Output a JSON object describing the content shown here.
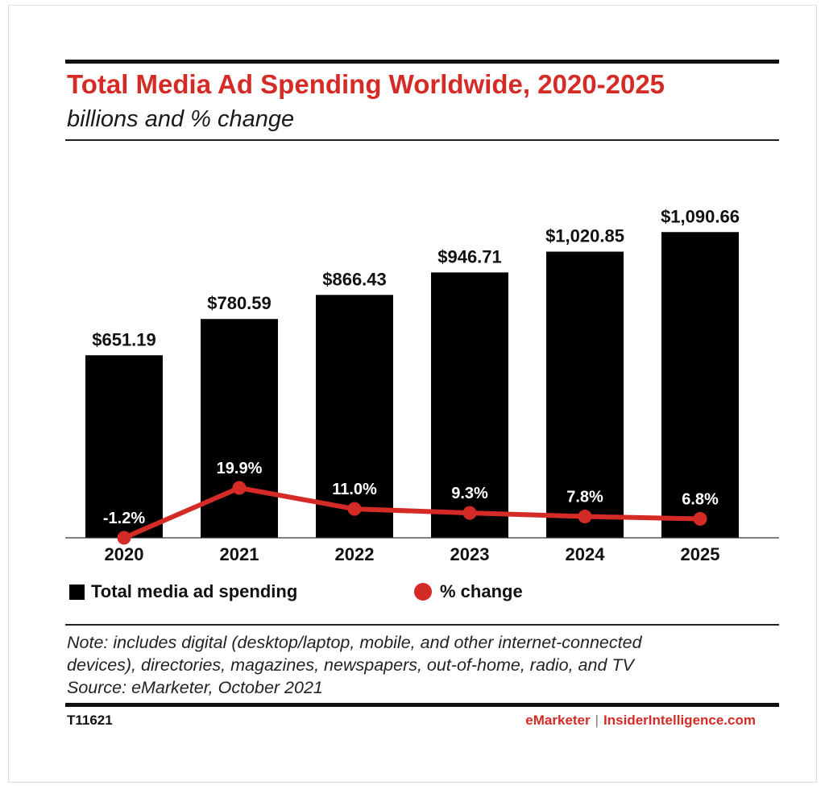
{
  "title": "Total Media Ad Spending Worldwide, 2020-2025",
  "subtitle": "billions and % change",
  "legend": {
    "bars": "Total media ad spending",
    "line": "% change"
  },
  "note": {
    "line1": "Note: includes digital (desktop/laptop, mobile, and other internet-connected",
    "line2": "devices), directories, magazines, newspapers, out-of-home, radio, and TV",
    "source": "Source: eMarketer, October 2021"
  },
  "footer": {
    "code": "T11621",
    "brand_a": "eMarketer",
    "separator": "|",
    "brand_b": "InsiderIntelligence.com"
  },
  "colors": {
    "bar": "#000000",
    "line": "#d52b27",
    "title": "#d52b27"
  },
  "chart_data": {
    "type": "bar",
    "categories": [
      "2020",
      "2021",
      "2022",
      "2023",
      "2024",
      "2025"
    ],
    "series": [
      {
        "name": "Total media ad spending",
        "type": "bar",
        "values": [
          651.19,
          780.59,
          866.43,
          946.71,
          1020.85,
          1090.66
        ],
        "labels": [
          "$651.19",
          "$780.59",
          "$866.43",
          "$946.71",
          "$1,020.85",
          "$1,090.66"
        ]
      },
      {
        "name": "% change",
        "type": "line",
        "values": [
          -1.2,
          19.9,
          11.0,
          9.3,
          7.8,
          6.8
        ],
        "labels": [
          "-1.2%",
          "19.9%",
          "11.0%",
          "9.3%",
          "7.8%",
          "6.8%"
        ]
      }
    ],
    "ylim": [
      0,
      1200
    ],
    "y2lim": [
      -1.2,
      40
    ],
    "grid": false,
    "legend_position": "bottom"
  }
}
